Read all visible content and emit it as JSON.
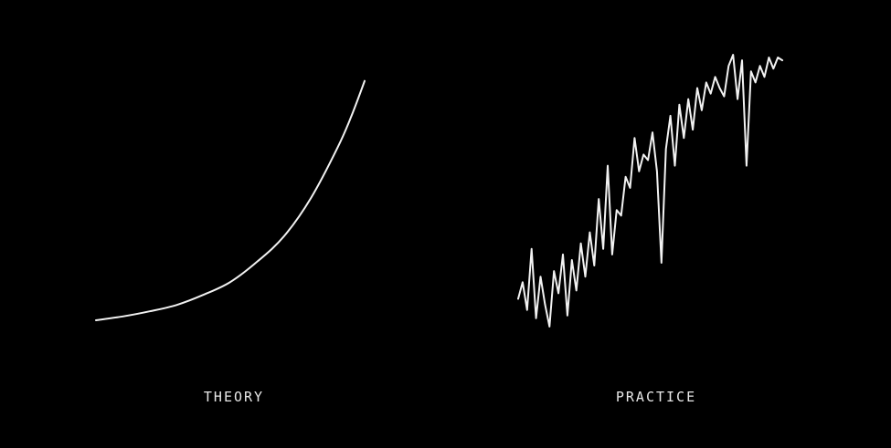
{
  "colors": {
    "background": "#000000",
    "line": "#f2f2f2",
    "label": "#e8e8e8"
  },
  "chart_data": [
    {
      "type": "line",
      "caption": "THEORY",
      "axes_visible": false,
      "grid": false,
      "legend": "none",
      "xlim": [
        0,
        10
      ],
      "ylim": [
        0,
        100
      ],
      "series": [
        {
          "x": [
            0,
            1,
            2,
            3,
            4,
            5,
            6,
            7,
            8,
            9,
            9.5,
            10
          ],
          "y": [
            0,
            1.5,
            3.5,
            6,
            10,
            15,
            23,
            33,
            48,
            68,
            80,
            94
          ]
        }
      ]
    },
    {
      "type": "line",
      "caption": "PRACTICE",
      "axes_visible": false,
      "grid": false,
      "legend": "none",
      "xlim": [
        0,
        60
      ],
      "ylim": [
        0,
        100
      ],
      "series": [
        {
          "x": [
            0,
            1,
            2,
            3,
            4,
            5,
            6,
            7,
            8,
            9,
            10,
            11,
            12,
            13,
            14,
            15,
            16,
            17,
            18,
            19,
            20,
            21,
            22,
            23,
            24,
            25,
            26,
            27,
            28,
            29,
            30,
            31,
            32,
            33,
            34,
            35,
            36,
            37,
            38,
            39,
            40,
            41,
            42,
            43,
            44,
            45,
            46,
            47,
            48,
            49,
            50,
            51,
            52,
            53,
            54,
            55,
            56,
            57,
            58,
            59
          ],
          "y": [
            12,
            18,
            8,
            30,
            5,
            20,
            10,
            2,
            22,
            14,
            28,
            6,
            26,
            15,
            32,
            20,
            36,
            24,
            48,
            30,
            60,
            28,
            44,
            42,
            56,
            52,
            70,
            58,
            64,
            62,
            72,
            58,
            25,
            66,
            78,
            60,
            82,
            70,
            84,
            73,
            88,
            80,
            90,
            86,
            92,
            88,
            85,
            96,
            100,
            84,
            98,
            60,
            94,
            90,
            96,
            92,
            99,
            95,
            99,
            98
          ]
        }
      ]
    }
  ]
}
